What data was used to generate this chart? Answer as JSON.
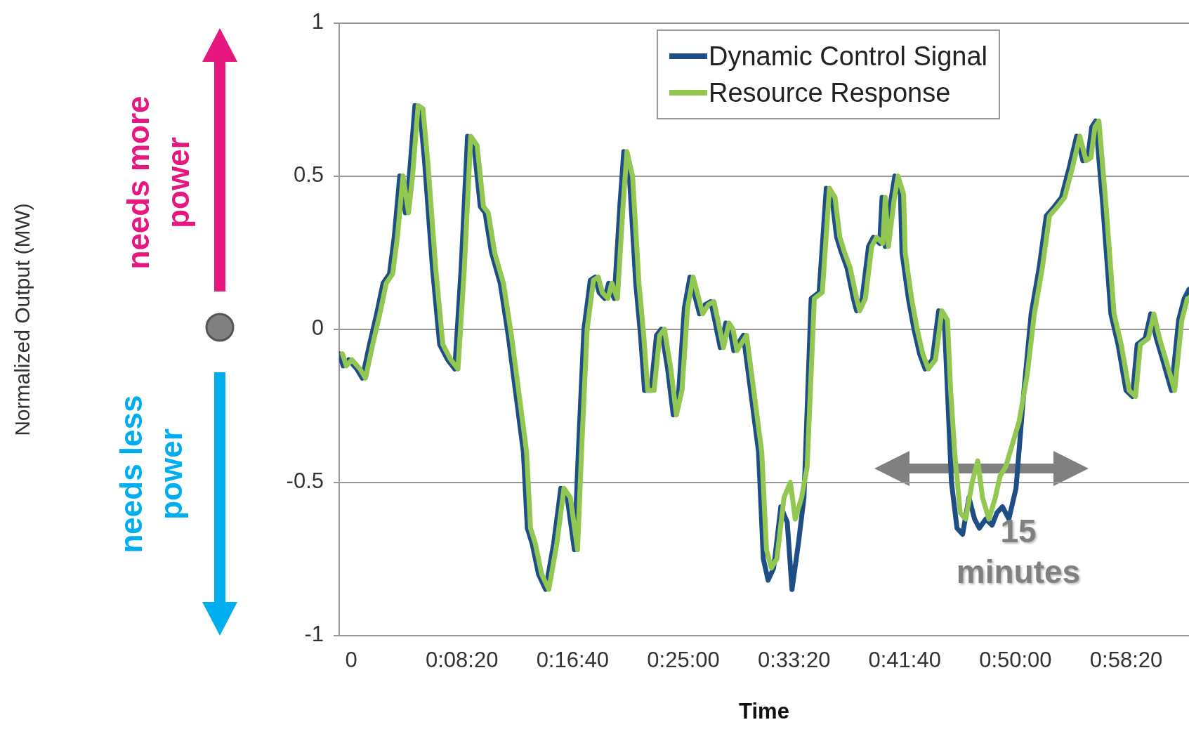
{
  "chart_data": {
    "type": "line",
    "xlabel": "Time",
    "xlim": [
      -0.015,
      1.051
    ],
    "xticks": [
      {
        "value": 0,
        "label": "0"
      },
      {
        "value": 0.1389,
        "label": "0:08:20"
      },
      {
        "value": 0.2778,
        "label": "0:16:40"
      },
      {
        "value": 0.4167,
        "label": "0:25:00"
      },
      {
        "value": 0.5556,
        "label": "0:33:20"
      },
      {
        "value": 0.6944,
        "label": "0:41:40"
      },
      {
        "value": 0.8333,
        "label": "0:50:00"
      },
      {
        "value": 0.9722,
        "label": "0:58:20"
      }
    ],
    "ylim": [
      -1,
      1
    ],
    "yticks": [
      -1,
      -0.5,
      0,
      0.5,
      1
    ],
    "grid": "y",
    "legend": "top right",
    "marker": "none",
    "line_style": "solid",
    "annotations": [
      "needs more power",
      "needs less power",
      "15 minutes",
      "Normalized Output (MW)"
    ],
    "series": [
      {
        "name": "Dynamic Control Signal",
        "color": "#1f4e87",
        "x": [
          -0.015,
          -0.01,
          -0.003,
          0.007,
          0.014,
          0.023,
          0.032,
          0.04,
          0.048,
          0.054,
          0.061,
          0.068,
          0.073,
          0.08,
          0.086,
          0.092,
          0.102,
          0.111,
          0.121,
          0.13,
          0.138,
          0.146,
          0.154,
          0.162,
          0.168,
          0.176,
          0.187,
          0.197,
          0.206,
          0.216,
          0.221,
          0.227,
          0.235,
          0.244,
          0.254,
          0.263,
          0.271,
          0.28,
          0.285,
          0.292,
          0.3,
          0.306,
          0.311,
          0.318,
          0.323,
          0.33,
          0.337,
          0.342,
          0.349,
          0.357,
          0.363,
          0.368,
          0.376,
          0.383,
          0.389,
          0.397,
          0.404,
          0.411,
          0.418,
          0.425,
          0.432,
          0.437,
          0.444,
          0.451,
          0.456,
          0.463,
          0.47,
          0.475,
          0.48,
          0.492,
          0.501,
          0.511,
          0.517,
          0.523,
          0.53,
          0.539,
          0.547,
          0.553,
          0.561,
          0.568,
          0.577,
          0.587,
          0.596,
          0.603,
          0.609,
          0.615,
          0.622,
          0.63,
          0.634,
          0.641,
          0.649,
          0.655,
          0.663,
          0.666,
          0.67,
          0.677,
          0.682,
          0.689,
          0.691,
          0.699,
          0.706,
          0.713,
          0.72,
          0.729,
          0.737,
          0.744,
          0.748,
          0.753,
          0.76,
          0.767,
          0.775,
          0.782,
          0.788,
          0.796,
          0.804,
          0.81,
          0.817,
          0.825,
          0.834,
          0.844,
          0.853,
          0.863,
          0.872,
          0.882,
          0.891,
          0.901,
          0.91,
          0.918,
          0.924,
          0.929,
          0.934,
          0.943,
          0.953,
          0.962,
          0.972,
          0.98,
          0.986,
          0.996,
          1.003,
          1.01,
          1.018,
          1.029,
          1.038,
          1.045,
          1.051
        ],
        "values": [
          -0.08,
          -0.12,
          -0.1,
          -0.13,
          -0.16,
          -0.05,
          0.05,
          0.15,
          0.18,
          0.3,
          0.5,
          0.38,
          0.5,
          0.73,
          0.72,
          0.55,
          0.2,
          -0.05,
          -0.1,
          -0.13,
          0.2,
          0.63,
          0.6,
          0.4,
          0.38,
          0.25,
          0.15,
          -0.02,
          -0.2,
          -0.4,
          -0.65,
          -0.7,
          -0.8,
          -0.85,
          -0.7,
          -0.52,
          -0.55,
          -0.72,
          -0.4,
          0.0,
          0.16,
          0.17,
          0.12,
          0.1,
          0.15,
          0.1,
          0.4,
          0.58,
          0.5,
          0.15,
          -0.02,
          -0.2,
          -0.2,
          -0.02,
          0.0,
          -0.13,
          -0.28,
          -0.2,
          0.07,
          0.17,
          0.1,
          0.05,
          0.08,
          0.09,
          0.03,
          -0.06,
          0.02,
          0.0,
          -0.07,
          -0.02,
          -0.2,
          -0.4,
          -0.75,
          -0.82,
          -0.78,
          -0.58,
          -0.63,
          -0.85,
          -0.7,
          -0.55,
          0.1,
          0.12,
          0.46,
          0.43,
          0.3,
          0.25,
          0.2,
          0.1,
          0.06,
          0.1,
          0.27,
          0.3,
          0.28,
          0.43,
          0.27,
          0.42,
          0.5,
          0.44,
          0.25,
          0.1,
          0.0,
          -0.08,
          -0.13,
          -0.1,
          0.06,
          0.03,
          -0.2,
          -0.5,
          -0.65,
          -0.67,
          -0.55,
          -0.62,
          -0.65,
          -0.62,
          -0.64,
          -0.6,
          -0.58,
          -0.62,
          -0.52,
          -0.2,
          0.05,
          0.2,
          0.37,
          0.4,
          0.43,
          0.53,
          0.63,
          0.55,
          0.56,
          0.66,
          0.68,
          0.4,
          0.05,
          -0.05,
          -0.2,
          -0.22,
          -0.05,
          -0.03,
          0.05,
          -0.03,
          -0.1,
          -0.2,
          0.03,
          0.1,
          0.13
        ]
      },
      {
        "name": "Resource Response",
        "color": "#92c851",
        "x": [
          -0.011,
          -0.006,
          0.001,
          0.011,
          0.018,
          0.027,
          0.036,
          0.044,
          0.052,
          0.058,
          0.065,
          0.072,
          0.077,
          0.084,
          0.09,
          0.096,
          0.106,
          0.115,
          0.125,
          0.134,
          0.142,
          0.15,
          0.158,
          0.166,
          0.172,
          0.18,
          0.191,
          0.201,
          0.21,
          0.22,
          0.225,
          0.231,
          0.239,
          0.248,
          0.258,
          0.267,
          0.275,
          0.284,
          0.289,
          0.296,
          0.304,
          0.31,
          0.315,
          0.322,
          0.327,
          0.334,
          0.341,
          0.346,
          0.353,
          0.361,
          0.367,
          0.372,
          0.38,
          0.387,
          0.393,
          0.401,
          0.408,
          0.415,
          0.422,
          0.429,
          0.436,
          0.441,
          0.448,
          0.455,
          0.46,
          0.467,
          0.474,
          0.479,
          0.484,
          0.496,
          0.505,
          0.515,
          0.521,
          0.527,
          0.534,
          0.543,
          0.551,
          0.557,
          0.565,
          0.572,
          0.581,
          0.591,
          0.6,
          0.607,
          0.613,
          0.619,
          0.626,
          0.634,
          0.638,
          0.645,
          0.653,
          0.659,
          0.667,
          0.67,
          0.674,
          0.681,
          0.686,
          0.693,
          0.695,
          0.703,
          0.71,
          0.717,
          0.724,
          0.733,
          0.741,
          0.748,
          0.752,
          0.757,
          0.764,
          0.771,
          0.779,
          0.786,
          0.792,
          0.8,
          0.808,
          0.814,
          0.821,
          0.829,
          0.838,
          0.848,
          0.857,
          0.867,
          0.876,
          0.886,
          0.895,
          0.905,
          0.914,
          0.922,
          0.928,
          0.933,
          0.938,
          0.947,
          0.957,
          0.966,
          0.976,
          0.984,
          0.99,
          1.0,
          1.007,
          1.014,
          1.022,
          1.033,
          1.042,
          1.049
        ],
        "values": [
          -0.08,
          -0.12,
          -0.1,
          -0.13,
          -0.16,
          -0.05,
          0.05,
          0.15,
          0.18,
          0.3,
          0.5,
          0.38,
          0.5,
          0.73,
          0.72,
          0.55,
          0.2,
          -0.05,
          -0.1,
          -0.13,
          0.2,
          0.63,
          0.6,
          0.4,
          0.38,
          0.25,
          0.15,
          -0.02,
          -0.2,
          -0.4,
          -0.65,
          -0.7,
          -0.8,
          -0.85,
          -0.7,
          -0.52,
          -0.55,
          -0.72,
          -0.4,
          0.0,
          0.16,
          0.17,
          0.12,
          0.1,
          0.15,
          0.1,
          0.4,
          0.58,
          0.5,
          0.15,
          -0.02,
          -0.2,
          -0.2,
          -0.02,
          0.0,
          -0.13,
          -0.28,
          -0.2,
          0.07,
          0.17,
          0.1,
          0.05,
          0.08,
          0.09,
          0.03,
          -0.06,
          0.02,
          0.0,
          -0.07,
          -0.02,
          -0.2,
          -0.4,
          -0.72,
          -0.78,
          -0.75,
          -0.55,
          -0.5,
          -0.62,
          -0.55,
          -0.45,
          0.1,
          0.12,
          0.46,
          0.43,
          0.3,
          0.25,
          0.2,
          0.1,
          0.06,
          0.1,
          0.27,
          0.3,
          0.28,
          0.43,
          0.27,
          0.42,
          0.5,
          0.44,
          0.25,
          0.1,
          0.0,
          -0.08,
          -0.13,
          -0.1,
          0.06,
          0.03,
          -0.2,
          -0.4,
          -0.6,
          -0.62,
          -0.5,
          -0.43,
          -0.55,
          -0.62,
          -0.55,
          -0.48,
          -0.45,
          -0.38,
          -0.3,
          -0.15,
          0.05,
          0.2,
          0.37,
          0.4,
          0.43,
          0.53,
          0.63,
          0.55,
          0.56,
          0.66,
          0.68,
          0.4,
          0.05,
          -0.05,
          -0.2,
          -0.22,
          -0.05,
          -0.03,
          0.05,
          -0.03,
          -0.1,
          -0.2,
          0.03,
          0.1
        ]
      }
    ]
  }
}
